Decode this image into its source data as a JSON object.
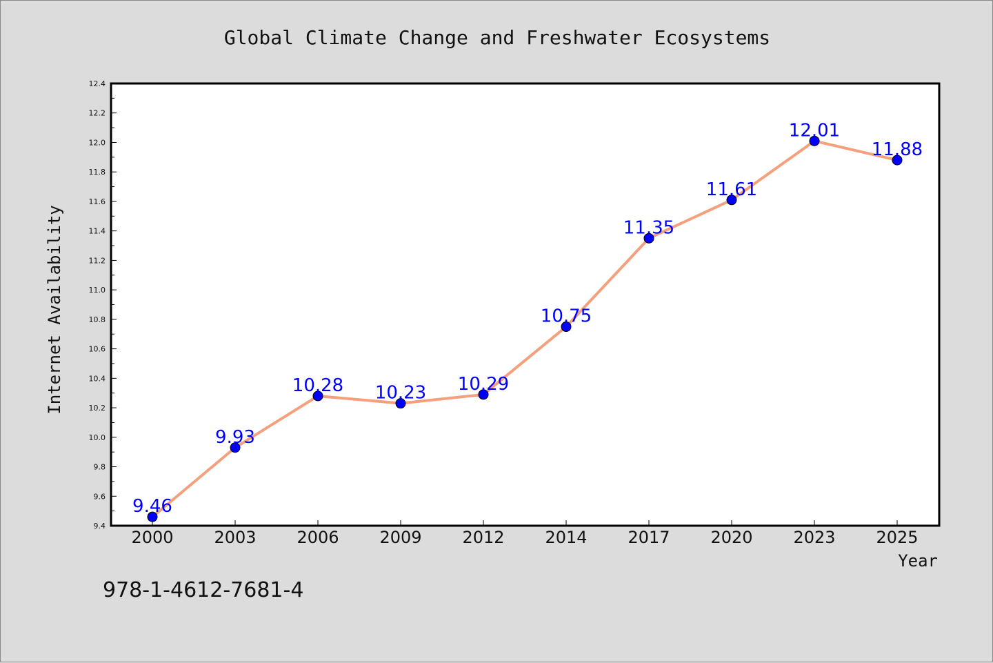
{
  "chart_data": {
    "type": "line",
    "title": "Global Climate Change and Freshwater Ecosystems",
    "xlabel": "Year",
    "ylabel": "Internet Availability",
    "categories": [
      "2000",
      "2003",
      "2006",
      "2009",
      "2012",
      "2014",
      "2017",
      "2020",
      "2023",
      "2025"
    ],
    "series": [
      {
        "values": [
          9.46,
          9.93,
          10.28,
          10.23,
          10.29,
          10.75,
          11.35,
          11.61,
          12.01,
          11.88
        ],
        "labels": [
          "9.46",
          "9.93",
          "10.28",
          "10.23",
          "10.29",
          "10.75",
          "11.35",
          "11.61",
          "12.01",
          "11.88"
        ],
        "line_color": "#f4a07c",
        "marker_color": "#0000ff"
      }
    ],
    "ylim": [
      9.4,
      12.4
    ],
    "yticks": [
      "9.4",
      "9.6",
      "9.8",
      "10.0",
      "10.2",
      "10.4",
      "10.6",
      "10.8",
      "11.0",
      "11.2",
      "11.4",
      "11.6",
      "11.8",
      "12.0",
      "12.2",
      "12.4"
    ],
    "grid": false,
    "legend": "none"
  },
  "footer_text": "978-1-4612-7681-4",
  "colors": {
    "background": "#dcdcdc",
    "plot_background": "#ffffff",
    "line": "#f4a07c",
    "marker": "#0000ff",
    "data_label": "#0000ff"
  }
}
